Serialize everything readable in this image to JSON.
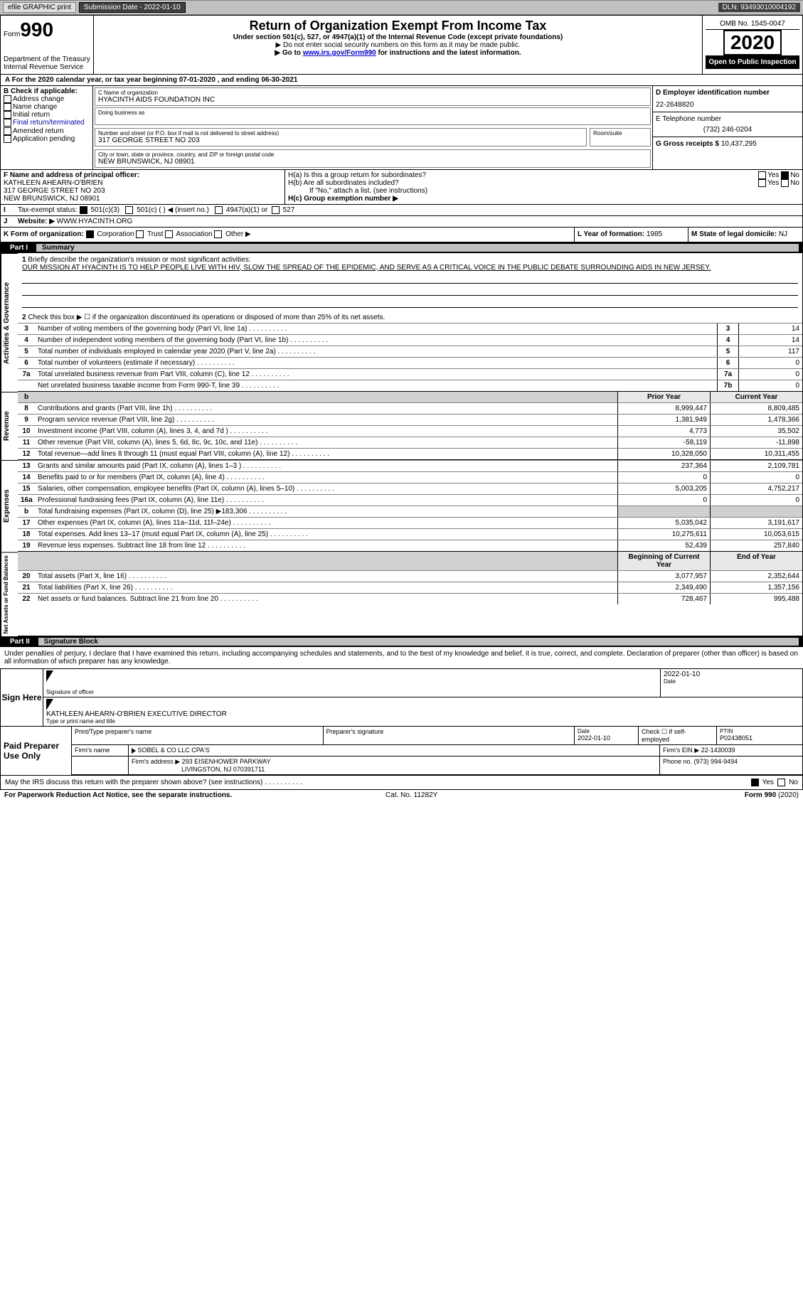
{
  "topbar": {
    "efile": "efile GRAPHIC print",
    "sub_label": "Submission Date - ",
    "sub_date": "2022-01-10",
    "dln_label": "DLN: ",
    "dln": "93493010004192"
  },
  "header": {
    "form_word": "Form",
    "form_no": "990",
    "dept": "Department of the Treasury\nInternal Revenue Service",
    "title": "Return of Organization Exempt From Income Tax",
    "sub": "Under section 501(c), 527, or 4947(a)(1) of the Internal Revenue Code (except private foundations)",
    "note1": "Do not enter social security numbers on this form as it may be made public.",
    "note2_a": "Go to ",
    "note2_link": "www.irs.gov/Form990",
    "note2_b": " for instructions and the latest information.",
    "omb_label": "OMB No. ",
    "omb": "1545-0047",
    "year": "2020",
    "open": "Open to Public Inspection"
  },
  "tyline": {
    "a": "A For the 2020 calendar year, or tax year beginning ",
    "b": "07-01-2020",
    "c": " , and ending ",
    "d": "06-30-2021"
  },
  "secB": {
    "title": "B Check if applicable:",
    "items": [
      "Address change",
      "Name change",
      "Initial return",
      "Final return/terminated",
      "Amended return",
      "Application pending"
    ],
    "c_label": "C Name of organization",
    "org": "HYACINTH AIDS FOUNDATION INC",
    "dba_label": "Doing business as",
    "addr_label": "Number and street (or P.O. box if mail is not delivered to street address)",
    "room": "Room/suite",
    "addr": "317 GEORGE STREET NO 203",
    "city_label": "City or town, state or province, country, and ZIP or foreign postal code",
    "city": "NEW BRUNSWICK, NJ  08901",
    "d_label": "D Employer identification number",
    "ein": "22-2648820",
    "e_label": "E Telephone number",
    "phone": "(732) 246-0204",
    "g_label": "G Gross receipts $ ",
    "gross": "10,437,295"
  },
  "secFH": {
    "f_label": "F Name and address of principal officer:",
    "f_name": "KATHLEEN AHEARN-O'BRIEN",
    "f_addr1": "317 GEORGE STREET NO 203",
    "f_addr2": "NEW BRUNSWICK, NJ  08901",
    "ha": "H(a)  Is this a group return for subordinates?",
    "hb": "H(b)  Are all subordinates included?",
    "hb_note": "If \"No,\" attach a list. (see instructions)",
    "hc": "H(c)  Group exemption number ▶",
    "yes": "Yes",
    "no": "No"
  },
  "secI": {
    "label": "Tax-exempt status:",
    "o1": "501(c)(3)",
    "o2": "501(c) (  ) ◀ (insert no.)",
    "o3": "4947(a)(1) or",
    "o4": "527"
  },
  "secJ": {
    "label": "Website: ▶",
    "val": "WWW.HYACINTH.ORG"
  },
  "secK": {
    "label": "K Form of organization:",
    "o": [
      "Corporation",
      "Trust",
      "Association",
      "Other ▶"
    ]
  },
  "secLM": {
    "l_label": "L Year of formation: ",
    "l": "1985",
    "m_label": "M State of legal domicile: ",
    "m": "NJ"
  },
  "part1": {
    "label": "Part I",
    "title": "Summary"
  },
  "gov": {
    "label": "Activities & Governance",
    "l1": "Briefly describe the organization's mission or most significant activities:",
    "mission": "OUR MISSION AT HYACINTH IS TO HELP PEOPLE LIVE WITH HIV, SLOW THE SPREAD OF THE EPIDEMIC, AND SERVE AS A CRITICAL VOICE IN THE PUBLIC DEBATE SURROUNDING AIDS IN NEW JERSEY.",
    "l2": "Check this box ▶ ☐  if the organization discontinued its operations or disposed of more than 25% of its net assets.",
    "rows": [
      {
        "n": "3",
        "t": "Number of voting members of the governing body (Part VI, line 1a)",
        "b": "3",
        "v": "14"
      },
      {
        "n": "4",
        "t": "Number of independent voting members of the governing body (Part VI, line 1b)",
        "b": "4",
        "v": "14"
      },
      {
        "n": "5",
        "t": "Total number of individuals employed in calendar year 2020 (Part V, line 2a)",
        "b": "5",
        "v": "117"
      },
      {
        "n": "6",
        "t": "Total number of volunteers (estimate if necessary)",
        "b": "6",
        "v": "0"
      },
      {
        "n": "7a",
        "t": "Total unrelated business revenue from Part VIII, column (C), line 12",
        "b": "7a",
        "v": "0"
      },
      {
        "n": "",
        "t": "Net unrelated business taxable income from Form 990-T, line 39",
        "b": "7b",
        "v": "0"
      }
    ]
  },
  "rev": {
    "label": "Revenue",
    "hdr_prior": "Prior Year",
    "hdr_curr": "Current Year",
    "rows": [
      {
        "n": "8",
        "t": "Contributions and grants (Part VIII, line 1h)",
        "p": "8,999,447",
        "c": "8,809,485"
      },
      {
        "n": "9",
        "t": "Program service revenue (Part VIII, line 2g)",
        "p": "1,381,949",
        "c": "1,478,366"
      },
      {
        "n": "10",
        "t": "Investment income (Part VIII, column (A), lines 3, 4, and 7d )",
        "p": "4,773",
        "c": "35,502"
      },
      {
        "n": "11",
        "t": "Other revenue (Part VIII, column (A), lines 5, 6d, 8c, 9c, 10c, and 11e)",
        "p": "-58,119",
        "c": "-11,898"
      },
      {
        "n": "12",
        "t": "Total revenue—add lines 8 through 11 (must equal Part VIII, column (A), line 12)",
        "p": "10,328,050",
        "c": "10,311,455"
      }
    ]
  },
  "exp": {
    "label": "Expenses",
    "rows": [
      {
        "n": "13",
        "t": "Grants and similar amounts paid (Part IX, column (A), lines 1–3 )",
        "p": "237,364",
        "c": "2,109,781"
      },
      {
        "n": "14",
        "t": "Benefits paid to or for members (Part IX, column (A), line 4)",
        "p": "0",
        "c": "0"
      },
      {
        "n": "15",
        "t": "Salaries, other compensation, employee benefits (Part IX, column (A), lines 5–10)",
        "p": "5,003,205",
        "c": "4,752,217"
      },
      {
        "n": "16a",
        "t": "Professional fundraising fees (Part IX, column (A), line 11e)",
        "p": "0",
        "c": "0"
      },
      {
        "n": "b",
        "t": "Total fundraising expenses (Part IX, column (D), line 25) ▶183,306",
        "p": "",
        "c": "",
        "shade": true
      },
      {
        "n": "17",
        "t": "Other expenses (Part IX, column (A), lines 11a–11d, 11f–24e)",
        "p": "5,035,042",
        "c": "3,191,617"
      },
      {
        "n": "18",
        "t": "Total expenses. Add lines 13–17 (must equal Part IX, column (A), line 25)",
        "p": "10,275,611",
        "c": "10,053,615"
      },
      {
        "n": "19",
        "t": "Revenue less expenses. Subtract line 18 from line 12",
        "p": "52,439",
        "c": "257,840"
      }
    ]
  },
  "net": {
    "label": "Net Assets or Fund Balances",
    "hdr_beg": "Beginning of Current Year",
    "hdr_end": "End of Year",
    "rows": [
      {
        "n": "20",
        "t": "Total assets (Part X, line 16)",
        "p": "3,077,957",
        "c": "2,352,644"
      },
      {
        "n": "21",
        "t": "Total liabilities (Part X, line 26)",
        "p": "2,349,490",
        "c": "1,357,156"
      },
      {
        "n": "22",
        "t": "Net assets or fund balances. Subtract line 21 from line 20",
        "p": "728,467",
        "c": "995,488"
      }
    ]
  },
  "part2": {
    "label": "Part II",
    "title": "Signature Block"
  },
  "penalty": "Under penalties of perjury, I declare that I have examined this return, including accompanying schedules and statements, and to the best of my knowledge and belief, it is true, correct, and complete. Declaration of preparer (other than officer) is based on all information of which preparer has any knowledge.",
  "sign": {
    "label": "Sign Here",
    "sig_of": "Signature of officer",
    "date_l": "Date",
    "date": "2022-01-10",
    "name": "KATHLEEN AHEARN-O'BRIEN  EXECUTIVE DIRECTOR",
    "type_l": "Type or print name and title"
  },
  "prep": {
    "label": "Paid Preparer Use Only",
    "h": [
      "Print/Type preparer's name",
      "Preparer's signature",
      "Date",
      "",
      "PTIN"
    ],
    "date": "2022-01-10",
    "self": "Check ☐ if self-employed",
    "ptin": "P02438051",
    "firm_l": "Firm's name",
    "firm": "SOBEL & CO LLC CPA'S",
    "ein_l": "Firm's EIN ▶ ",
    "ein": "22-1430039",
    "addr_l": "Firm's address ▶ ",
    "addr1": "293 EISENHOWER PARKWAY",
    "addr2": "LIVINGSTON, NJ  070391711",
    "phone_l": "Phone no. ",
    "phone": "(973) 994-9494"
  },
  "discuss": {
    "t": "May the IRS discuss this return with the preparer shown above? (see instructions)",
    "yes": "Yes",
    "no": "No"
  },
  "foot": {
    "l": "For Paperwork Reduction Act Notice, see the separate instructions.",
    "c": "Cat. No. 11282Y",
    "r": "Form 990 (2020)"
  }
}
